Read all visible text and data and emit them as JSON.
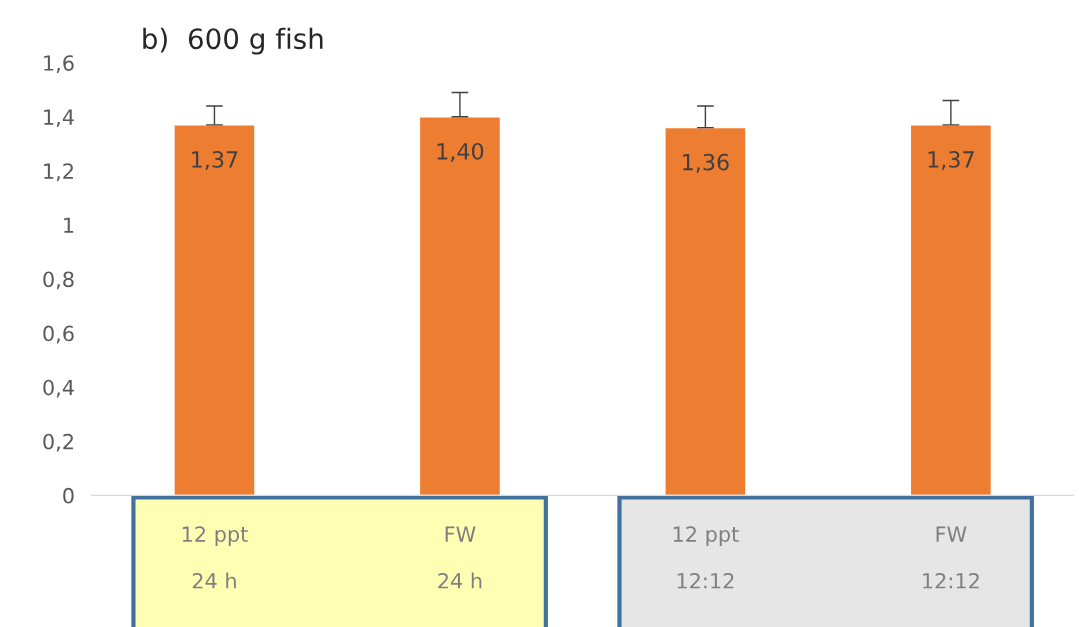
{
  "chart_data": {
    "type": "bar",
    "title": "b)  600 g fish",
    "categories": [
      "12 ppt\n\n24 h",
      "FW\n\n24 h",
      "12 ppt\n\n12:12",
      "FW\n\n12:12"
    ],
    "values": [
      1.37,
      1.4,
      1.36,
      1.37
    ],
    "value_labels": [
      "1,37",
      "1,40",
      "1,36",
      "1,37"
    ],
    "errors": [
      [
        1.37,
        1.44
      ],
      [
        1.4,
        1.49
      ],
      [
        1.36,
        1.44
      ],
      [
        1.37,
        1.46
      ]
    ],
    "color": "#ed7d31",
    "ylim": [
      0,
      1.6
    ],
    "yticks": [
      0,
      {
        "value": 0.2,
        "label": "0,2"
      },
      {
        "value": 0.4,
        "label": "0,4"
      },
      {
        "value": 0.6,
        "label": "0,6"
      },
      {
        "value": 0.8,
        "label": "0,8"
      },
      1,
      {
        "value": 1.2,
        "label": "1,2"
      },
      {
        "value": 1.4,
        "label": "1,4"
      },
      {
        "value": 1.6,
        "label": "1,6"
      }
    ],
    "grid": false
  }
}
